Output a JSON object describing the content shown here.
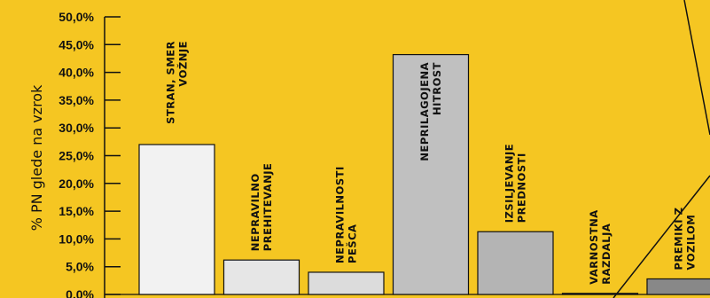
{
  "chart_data": {
    "type": "bar",
    "ylabel": "% PN glede na vzrok",
    "ylim": [
      0,
      50
    ],
    "yticks": [
      "0,0%",
      "5,0%",
      "10,0%",
      "15,0%",
      "20,0%",
      "25,0%",
      "30,0%",
      "35,0%",
      "40,0%",
      "45,0%",
      "50,0%"
    ],
    "categories": [
      [
        "STRAN, SMER",
        "VOŽNJE"
      ],
      [
        "NEPRAVILNO",
        "PREHITEVANJE"
      ],
      [
        "NEPRAVILNOSTI",
        "PEŠCA"
      ],
      [
        "NEPRILAGOJENA",
        "HITROST"
      ],
      [
        "IZSILJEVANJE",
        "PREDNOSTI"
      ],
      [
        "VARNOSTNA",
        "RAZDALJA"
      ],
      [
        "PREMIKI Z",
        "VOZILOM"
      ]
    ],
    "values": [
      27.0,
      6.2,
      4.0,
      43.2,
      11.3,
      0.2,
      2.8
    ],
    "bar_colors": [
      "#F2F2F2",
      "#E6E6E6",
      "#DCDCDC",
      "#C0C0C0",
      "#B4B4B4",
      "#A6A6A6",
      "#888888"
    ],
    "grid": false
  },
  "colors": {
    "background": "#F5C622",
    "axis": "#111111"
  }
}
